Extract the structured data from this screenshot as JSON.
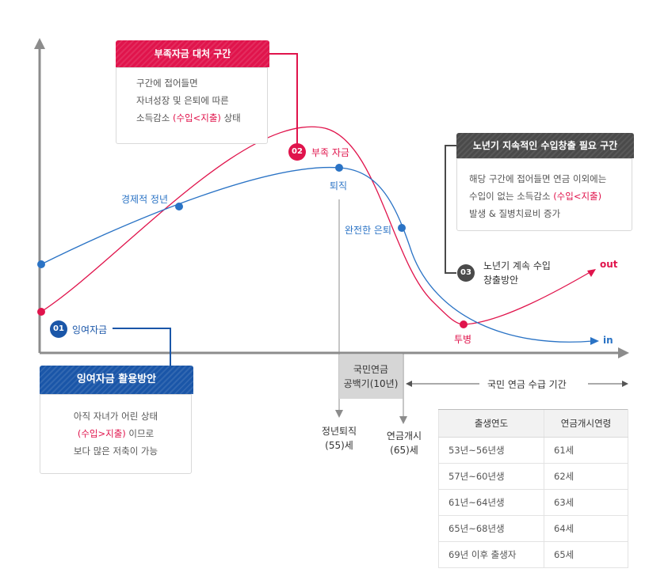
{
  "box_shortfall": {
    "title": "부족자금 대처 구간",
    "line1": "구간에 접어들면",
    "line2": "자녀성장 및 은퇴에 따른",
    "line3_prefix": "소득감소 ",
    "line3_highlight": "(수입<지출)",
    "line3_suffix": " 상태"
  },
  "box_elder": {
    "title": "노년기 지속적인 수입창출 필요 구간",
    "line1": "해당 구간에 접어들면 연금 이외에는",
    "line2_prefix": "수입이 없는 소득감소 ",
    "line2_highlight": "(수입<지출)",
    "line3": "발생 & 질병치료비 증가"
  },
  "box_surplus": {
    "title": "잉여자금 활용방안",
    "line1": "아직 자녀가 어린 상태",
    "line2_highlight": "(수입>지출)",
    "line2_suffix": " 이므로",
    "line3": "보다 많은 저축이 가능"
  },
  "markers": {
    "m01_num": "01",
    "m01_label": "잉여자금",
    "m02_num": "02",
    "m02_label": "부족 자금",
    "m03_num": "03",
    "m03_label_line1": "노년기 계속 수입",
    "m03_label_line2": "창출방안"
  },
  "labels": {
    "peak_age": "경제적 정년",
    "retire": "퇴직",
    "full_retire": "완전한 은퇴",
    "invest": "투병",
    "out": "out",
    "in": "in",
    "retire_age_line1": "정년퇴직",
    "retire_age_line2": "(55)세",
    "pension_start_line1": "연금개시",
    "pension_start_line2": "(65)세",
    "gap_line1": "국민연금",
    "gap_line2": "공백기(10년)",
    "receive_period": "국민 연금 수급 기간"
  },
  "table": {
    "headers": [
      "출생연도",
      "연금개시연령"
    ],
    "rows": [
      [
        "53년~56년생",
        "61세"
      ],
      [
        "57년~60년생",
        "62세"
      ],
      [
        "61년~64년생",
        "63세"
      ],
      [
        "65년~68년생",
        "64세"
      ],
      [
        "69년 이후 출생자",
        "65세"
      ]
    ]
  },
  "colors": {
    "red": "#e0144c",
    "blue": "#2a73c5",
    "navy": "#1a56a8",
    "gray": "#4a4a4a",
    "axis": "#8c8c8c"
  }
}
